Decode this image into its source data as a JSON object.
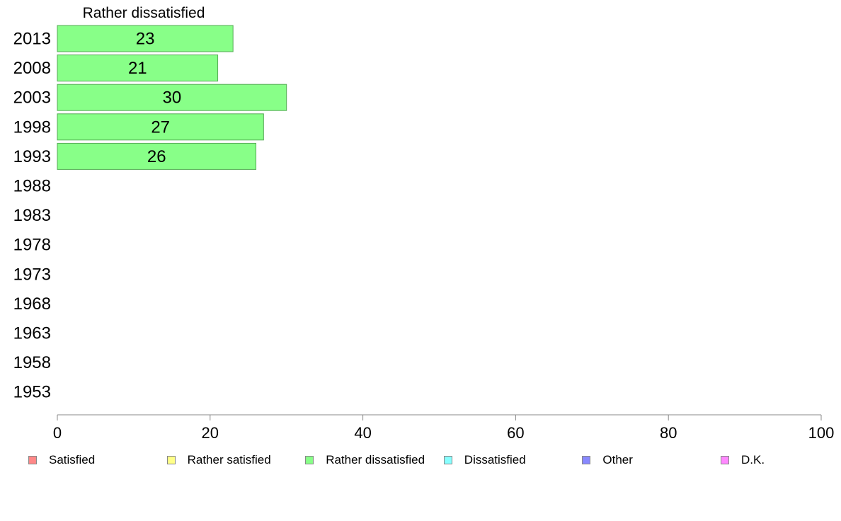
{
  "chart_data": {
    "type": "bar",
    "orientation": "horizontal",
    "title": "Rather dissatisfied",
    "categories": [
      "2013",
      "2008",
      "2003",
      "1998",
      "1993",
      "1988",
      "1983",
      "1978",
      "1973",
      "1968",
      "1963",
      "1958",
      "1953"
    ],
    "series": [
      {
        "name": "Rather dissatisfied",
        "color": "#88ff88",
        "values": [
          23,
          21,
          30,
          27,
          26,
          null,
          null,
          null,
          null,
          null,
          null,
          null,
          null
        ]
      }
    ],
    "xlim": [
      0,
      100
    ],
    "xticks": [
      0,
      20,
      40,
      60,
      80,
      100
    ],
    "grid": false,
    "legend_position": "bottom"
  },
  "legend": {
    "items": [
      {
        "label": "Satisfied",
        "color": "#ff8888"
      },
      {
        "label": "Rather satisfied",
        "color": "#ffff88"
      },
      {
        "label": "Rather dissatisfied",
        "color": "#88ff88"
      },
      {
        "label": "Dissatisfied",
        "color": "#88ffff"
      },
      {
        "label": "Other",
        "color": "#8888ff"
      },
      {
        "label": "D.K.",
        "color": "#ff88ff"
      }
    ]
  }
}
